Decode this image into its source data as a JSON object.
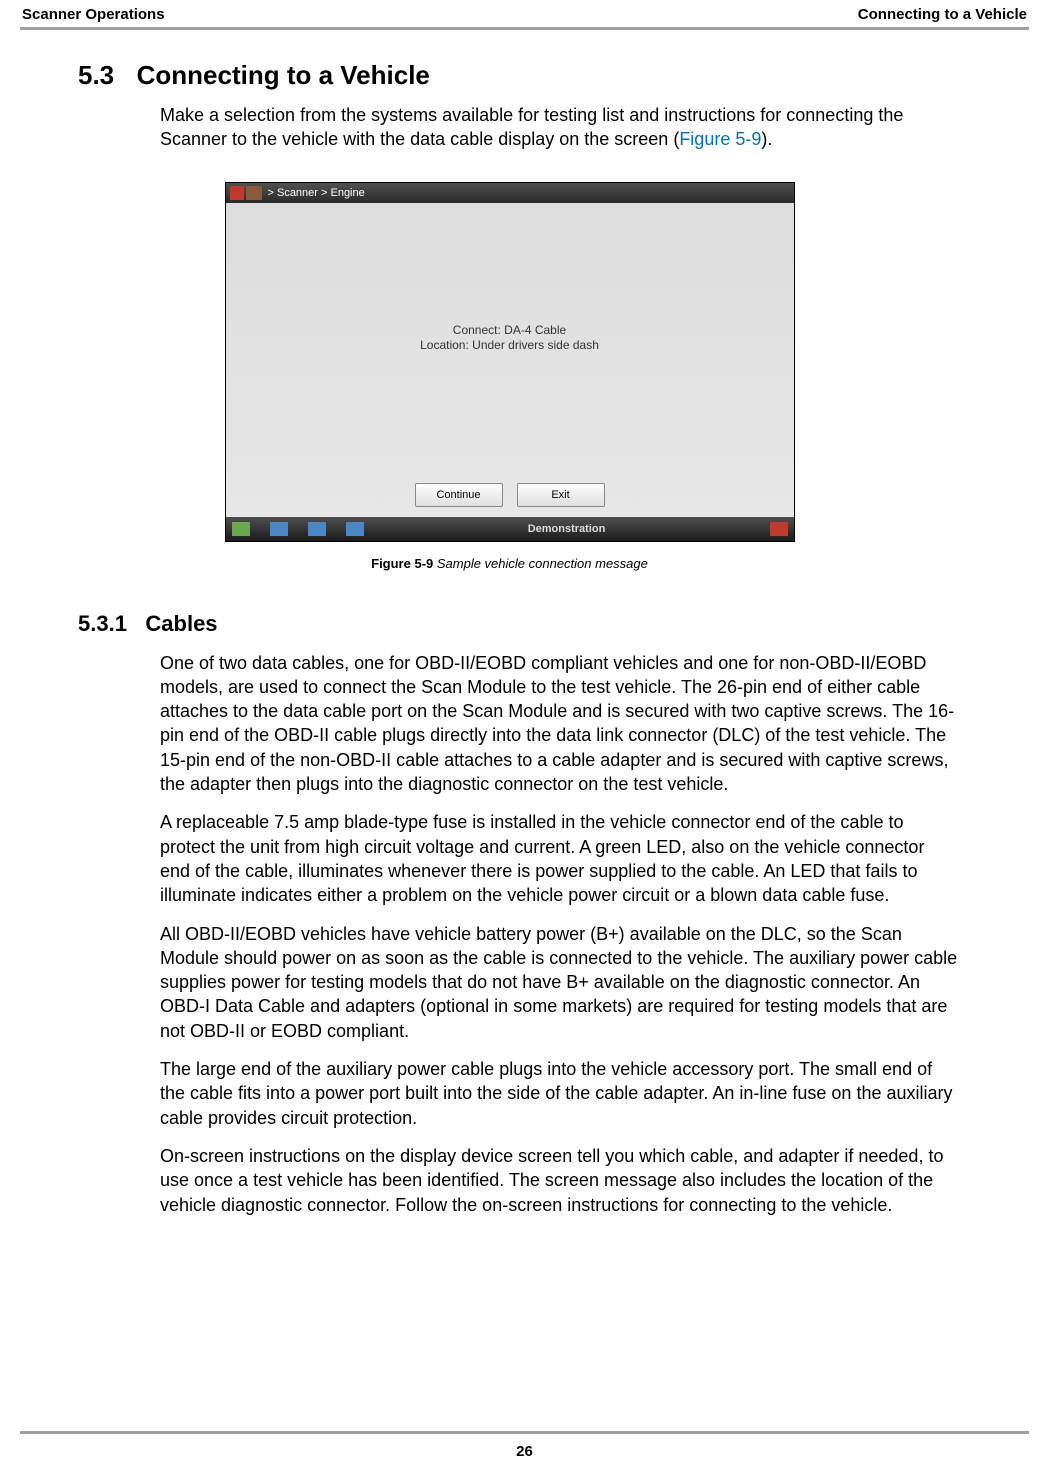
{
  "header": {
    "left": "Scanner Operations",
    "right": "Connecting to a Vehicle"
  },
  "section": {
    "number": "5.3",
    "title": "Connecting to a Vehicle",
    "intro_pre": "Make a selection from the systems available for testing list and instructions for connecting the Scanner to the vehicle with the data cable display on the screen (",
    "intro_ref": "Figure 5-9",
    "intro_post": ")."
  },
  "screenshot": {
    "breadcrumb": " > Scanner  > Engine",
    "msg_line1": "Connect: DA-4 Cable",
    "msg_line2": "Location: Under drivers side dash",
    "btn_continue": "Continue",
    "btn_exit": "Exit",
    "demo_label": "Demonstration"
  },
  "figure": {
    "label": "Figure 5-9",
    "caption": " Sample vehicle connection message"
  },
  "subsection": {
    "number": "5.3.1",
    "title": "Cables",
    "p1": "One of two data cables, one for OBD-II/EOBD compliant vehicles and one for non-OBD-II/EOBD models, are used to connect the Scan Module to the test vehicle. The 26-pin end of either cable attaches to the data cable port on the Scan Module and is secured with two captive screws. The 16-pin end of the OBD-II cable plugs directly into the data link connector (DLC) of the test vehicle. The 15-pin end of the non-OBD-II cable attaches to a cable adapter and is secured with captive screws, the adapter then plugs into the diagnostic connector on the test vehicle.",
    "p2": "A replaceable 7.5 amp blade-type fuse is installed in the vehicle connector end of the cable to protect the unit from high circuit voltage and current. A green LED, also on the vehicle connector end of the cable, illuminates whenever there is power supplied to the cable. An LED that fails to illuminate indicates either a problem on the vehicle power circuit or a blown data cable fuse.",
    "p3": "All OBD-II/EOBD vehicles have vehicle battery power (B+) available on the DLC, so the Scan Module should power on as soon as the cable is connected to the vehicle. The auxiliary power cable supplies power for testing models that do not have B+ available on the diagnostic connector. An OBD-I Data Cable and adapters (optional in some markets) are required for testing models that are not OBD-II or EOBD compliant.",
    "p4": "The large end of the auxiliary power cable plugs into the vehicle accessory port. The small end of the cable fits into a power port built into the side of the cable adapter. An in-line fuse on the auxiliary cable provides circuit protection.",
    "p5": "On-screen instructions on the display device screen tell you which cable, and adapter if needed, to use once a test vehicle has been identified. The screen message also includes the location of the vehicle diagnostic connector. Follow the on-screen instructions for connecting to the vehicle."
  },
  "page_number": "26"
}
